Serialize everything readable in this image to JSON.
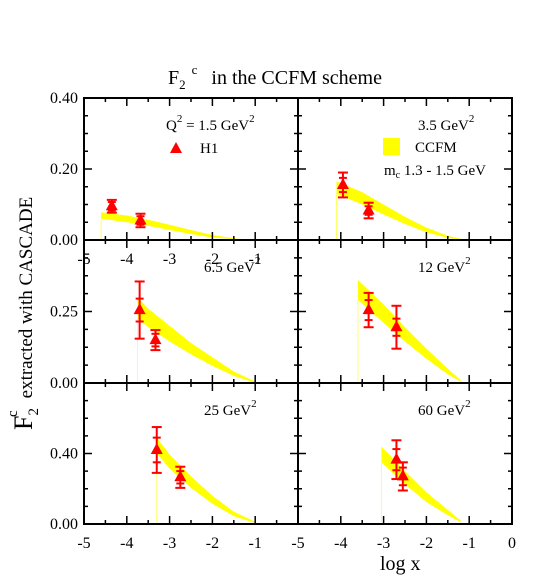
{
  "title": {
    "main": "F",
    "sub": "2",
    "sup": "c",
    "rest": "in  the  CCFM  scheme"
  },
  "y_axis_label": {
    "main": "F",
    "sub": "2",
    "sup": "c",
    "rest": "extracted  with  CASCADE"
  },
  "x_axis_label": "log x",
  "legend": {
    "h1": "H1",
    "ccfm": "CCFM",
    "mc_sub": "c",
    "mc_rest": " 1.3 - 1.5 GeV"
  },
  "colors": {
    "data": "#ff0000",
    "band": "#ffff00",
    "frame": "#000000"
  },
  "chart_data": [
    {
      "type": "scatter",
      "panel": "top-left",
      "label": "Q² = 1.5 GeV²",
      "xlim": [
        -5,
        0
      ],
      "ylim": [
        0,
        0.4
      ],
      "xticks": [
        "-5",
        "-4",
        "-3",
        "-2",
        "-1"
      ],
      "yticks": [
        "0.00",
        "0.20",
        "0.40"
      ],
      "series": [
        {
          "name": "H1",
          "x": [
            -4.35,
            -3.68
          ],
          "y": [
            0.095,
            0.055
          ],
          "err_stat": [
            0.012,
            0.012
          ],
          "err_tot": [
            0.018,
            0.019
          ]
        },
        {
          "name": "CCFM",
          "band_x": [
            -4.6,
            -4.0,
            -3.5,
            -3.0,
            -2.5,
            -2.0,
            -1.5,
            -1.2
          ],
          "band_lo": [
            0.06,
            0.05,
            0.04,
            0.028,
            0.017,
            0.007,
            0.002,
            0.0
          ],
          "band_hi": [
            0.078,
            0.069,
            0.057,
            0.043,
            0.028,
            0.014,
            0.005,
            0.001
          ]
        }
      ]
    },
    {
      "type": "scatter",
      "panel": "top-right",
      "label": "3.5 GeV²",
      "xlim": [
        -5,
        0
      ],
      "ylim": [
        0,
        0.4
      ],
      "xticks": [],
      "yticks": [],
      "series": [
        {
          "name": "H1",
          "x": [
            -3.95,
            -3.35
          ],
          "y": [
            0.155,
            0.083
          ],
          "err_stat": [
            0.02,
            0.012
          ],
          "err_tot": [
            0.035,
            0.022
          ]
        },
        {
          "name": "CCFM",
          "band_x": [
            -4.1,
            -3.5,
            -3.0,
            -2.5,
            -2.0,
            -1.5,
            -1.2
          ],
          "band_lo": [
            0.13,
            0.1,
            0.072,
            0.045,
            0.022,
            0.006,
            0.0
          ],
          "band_hi": [
            0.165,
            0.135,
            0.1,
            0.065,
            0.035,
            0.012,
            0.003
          ]
        }
      ]
    },
    {
      "type": "scatter",
      "panel": "mid-left",
      "label": "6.5 GeV²",
      "xlim": [
        -5,
        0
      ],
      "ylim": [
        0,
        0.5
      ],
      "xticks": [],
      "yticks": [
        "0.00",
        "0.25"
      ],
      "series": [
        {
          "name": "H1",
          "x": [
            -3.7,
            -3.33
          ],
          "y": [
            0.255,
            0.15
          ],
          "err_stat": [
            0.04,
            0.022
          ],
          "err_tot": [
            0.1,
            0.035
          ]
        },
        {
          "name": "CCFM",
          "band_x": [
            -3.75,
            -3.5,
            -3.0,
            -2.5,
            -2.0,
            -1.5,
            -1.0
          ],
          "band_lo": [
            0.225,
            0.195,
            0.145,
            0.1,
            0.06,
            0.025,
            0.0
          ],
          "band_hi": [
            0.3,
            0.26,
            0.2,
            0.14,
            0.09,
            0.04,
            0.005
          ]
        }
      ]
    },
    {
      "type": "scatter",
      "panel": "mid-right",
      "label": "12 GeV²",
      "xlim": [
        -5,
        0
      ],
      "ylim": [
        0,
        0.5
      ],
      "xticks": [],
      "yticks": [],
      "series": [
        {
          "name": "H1",
          "x": [
            -3.35,
            -2.7
          ],
          "y": [
            0.255,
            0.195
          ],
          "err_stat": [
            0.035,
            0.03
          ],
          "err_tot": [
            0.06,
            0.075
          ]
        },
        {
          "name": "CCFM",
          "band_x": [
            -3.6,
            -3.0,
            -2.5,
            -2.0,
            -1.5,
            -1.2
          ],
          "band_lo": [
            0.29,
            0.21,
            0.145,
            0.085,
            0.03,
            0.005
          ],
          "band_hi": [
            0.36,
            0.275,
            0.195,
            0.12,
            0.05,
            0.01
          ]
        }
      ]
    },
    {
      "type": "scatter",
      "panel": "bottom-left",
      "label": "25 GeV²",
      "xlim": [
        -5,
        0
      ],
      "ylim": [
        0,
        0.8
      ],
      "xticks": [
        "-5",
        "-4",
        "-3",
        "-2",
        "-1"
      ],
      "yticks": [
        "0.00",
        "0.40"
      ],
      "series": [
        {
          "name": "H1",
          "x": [
            -3.3,
            -2.75
          ],
          "y": [
            0.42,
            0.265
          ],
          "err_stat": [
            0.07,
            0.035
          ],
          "err_tot": [
            0.13,
            0.06
          ]
        },
        {
          "name": "CCFM",
          "band_x": [
            -3.3,
            -3.0,
            -2.5,
            -2.0,
            -1.5,
            -1.0
          ],
          "band_lo": [
            0.4,
            0.315,
            0.205,
            0.115,
            0.045,
            0.005
          ],
          "band_hi": [
            0.49,
            0.395,
            0.27,
            0.16,
            0.07,
            0.012
          ]
        }
      ]
    },
    {
      "type": "scatter",
      "panel": "bottom-right",
      "label": "60 GeV²",
      "xlim": [
        -5,
        0
      ],
      "ylim": [
        0,
        0.8
      ],
      "xticks": [
        "-5",
        "-4",
        "-3",
        "-2",
        "-1",
        "0"
      ],
      "yticks": [],
      "series": [
        {
          "name": "H1",
          "x": [
            -2.7,
            -2.55
          ],
          "y": [
            0.365,
            0.27
          ],
          "err_stat": [
            0.06,
            0.05
          ],
          "err_tot": [
            0.11,
            0.08
          ]
        },
        {
          "name": "CCFM",
          "band_x": [
            -3.05,
            -2.5,
            -2.0,
            -1.5,
            -1.2
          ],
          "band_lo": [
            0.35,
            0.225,
            0.125,
            0.05,
            0.01
          ],
          "band_hi": [
            0.44,
            0.3,
            0.18,
            0.08,
            0.02
          ]
        }
      ]
    }
  ]
}
